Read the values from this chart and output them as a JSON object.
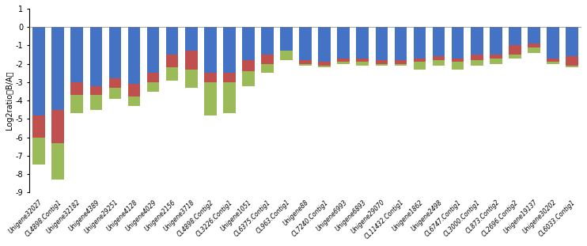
{
  "categories": [
    "Unigene32027",
    "CL4898.Contig1",
    "Unigene32182",
    "Unigene4389",
    "Unigene29251",
    "Unigene4128",
    "Unigene4029",
    "Unigene2156",
    "Unigene3718",
    "CL4898.Contig2",
    "CL3226.Contig1",
    "Unigene1051",
    "CL6375.Contig1",
    "CL963.Contig1",
    "Unigene88",
    "CL7240.Contig1",
    "Unigene6993",
    "Unigene6893",
    "Unigene29070",
    "CL11432.Contig1",
    "Unigene1862",
    "Unigene2498",
    "CL6747.Contig1",
    "CL3000.Contig1",
    "CL873.Contig2",
    "CL2696.Contig2",
    "Unigene19137",
    "Unigene30202",
    "CL6033.Contig1"
  ],
  "blue": [
    -4.8,
    -4.5,
    -3.0,
    -3.2,
    -2.8,
    -3.1,
    -2.5,
    -1.5,
    -1.3,
    -2.5,
    -2.5,
    -1.8,
    -1.5,
    -1.5,
    -1.8,
    -1.9,
    -1.7,
    -1.7,
    -1.8,
    -1.8,
    -1.7,
    -1.6,
    -1.7,
    -1.5,
    -1.5,
    -1.0,
    -0.9,
    -1.7,
    -1.6
  ],
  "red": [
    -1.2,
    -1.8,
    -0.7,
    -0.5,
    -0.5,
    -0.7,
    -0.5,
    -0.7,
    -1.0,
    -0.5,
    -0.5,
    -0.6,
    -0.5,
    -0.3,
    -0.2,
    -0.2,
    -0.2,
    -0.2,
    -0.2,
    -0.2,
    -0.2,
    -0.2,
    -0.2,
    -0.3,
    -0.2,
    -0.5,
    -0.5,
    -0.2,
    -0.5
  ],
  "green": [
    -1.5,
    -2.0,
    -1.0,
    -0.8,
    -0.6,
    -0.5,
    -0.5,
    -0.7,
    -1.0,
    -1.8,
    -1.7,
    -0.8,
    -0.5,
    0.5,
    -0.1,
    -0.1,
    -0.1,
    -0.2,
    -0.1,
    -0.1,
    -0.4,
    -0.3,
    -0.4,
    -0.3,
    -0.3,
    -0.2,
    0.3,
    -0.1,
    -0.1
  ],
  "colors": [
    "#4472C4",
    "#C0504D",
    "#9BBB59"
  ],
  "ylabel": "Log2ratio（B/A）",
  "ylim": [
    -9,
    1
  ],
  "yticks": [
    1,
    0,
    -1,
    -2,
    -3,
    -4,
    -5,
    -6,
    -7,
    -8,
    -9
  ],
  "bg_color": "#FFFFFF"
}
